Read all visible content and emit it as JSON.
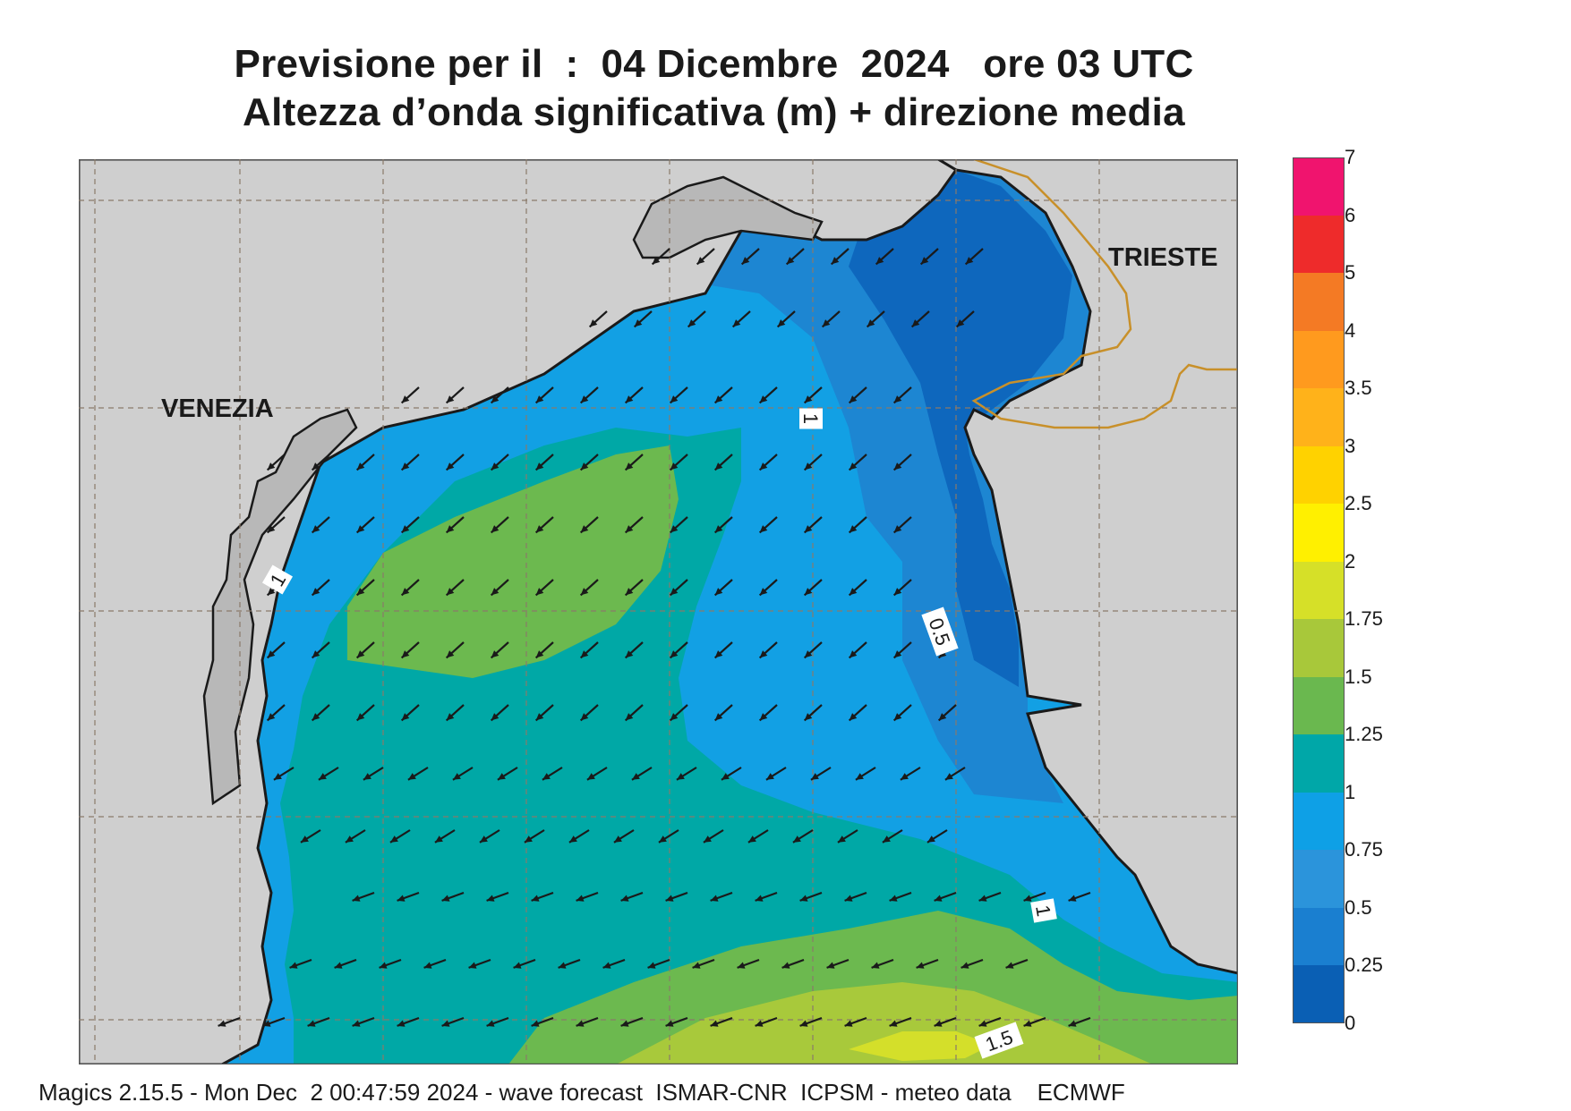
{
  "title": {
    "line1": "Previsione per il  :  04 Dicembre  2024   ore 03 UTC",
    "line2": "Altezza d’onda significativa (m) + direzione media"
  },
  "cities": {
    "venezia": "VENEZIA",
    "trieste": "TRIESTE"
  },
  "contour_labels": [
    "1",
    "1",
    "0.5",
    "1",
    "1.5"
  ],
  "legend": {
    "levels": [
      "0",
      "0.25",
      "0.5",
      "0.75",
      "1",
      "1.25",
      "1.5",
      "1.75",
      "2",
      "2.5",
      "3",
      "3.5",
      "4",
      "5",
      "6",
      "7"
    ],
    "colors": [
      "#0a5fb4",
      "#1a7fd0",
      "#2b94db",
      "#0ea0e6",
      "#00a7a8",
      "#6ab84f",
      "#a8c83a",
      "#d6e028",
      "#fff000",
      "#ffd200",
      "#ffb21a",
      "#ff9a1e",
      "#f47a24",
      "#ee2b2b",
      "#f0146e"
    ]
  },
  "colors": {
    "land": "#cfcfcf",
    "lagoon_gray": "#b8b8b8",
    "border": "#c8902a",
    "grid": "#8a7a6a",
    "arrow": "#1a1a1a"
  },
  "footer": "Magics 2.15.5 - Mon Dec  2 00:47:59 2024 - wave forecast  ISMAR-CNR  ICPSM - meteo data    ECMWF"
}
